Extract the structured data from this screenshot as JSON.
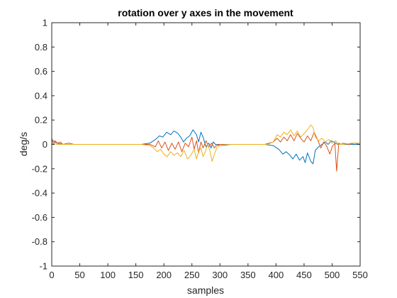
{
  "chart_data": {
    "type": "line",
    "title": "rotation over y axes in the movement",
    "xlabel": "samples",
    "ylabel": "deg/s",
    "xlim": [
      0,
      550
    ],
    "ylim": [
      -1,
      1
    ],
    "xticks": [
      "0",
      "50",
      "100",
      "150",
      "200",
      "250",
      "300",
      "350",
      "400",
      "450",
      "500",
      "550"
    ],
    "yticks": [
      "1",
      "0.8",
      "0.6",
      "0.4",
      "0.2",
      "0",
      "-0.2",
      "-0.4",
      "-0.6",
      "-0.8",
      "-1"
    ],
    "grid": false,
    "series": [
      {
        "color": "#0072BD",
        "points": [
          [
            0,
            0.04
          ],
          [
            5,
            0.02
          ],
          [
            10,
            0.01
          ],
          [
            20,
            0.0
          ],
          [
            40,
            0.0
          ],
          [
            60,
            0.0
          ],
          [
            80,
            0.0
          ],
          [
            100,
            0.0
          ],
          [
            120,
            0.0
          ],
          [
            140,
            0.0
          ],
          [
            160,
            0.0
          ],
          [
            175,
            0.01
          ],
          [
            185,
            0.04
          ],
          [
            192,
            0.07
          ],
          [
            198,
            0.06
          ],
          [
            205,
            0.1
          ],
          [
            212,
            0.08
          ],
          [
            218,
            0.11
          ],
          [
            225,
            0.09
          ],
          [
            230,
            0.06
          ],
          [
            235,
            0.02
          ],
          [
            240,
            0.05
          ],
          [
            246,
            0.07
          ],
          [
            252,
            0.12
          ],
          [
            258,
            0.08
          ],
          [
            262,
            0.02
          ],
          [
            266,
            0.1
          ],
          [
            270,
            0.06
          ],
          [
            275,
            -0.02
          ],
          [
            280,
            0.01
          ],
          [
            284,
            -0.03
          ],
          [
            288,
            0.02
          ],
          [
            292,
            0.0
          ],
          [
            300,
            -0.01
          ],
          [
            320,
            0.0
          ],
          [
            340,
            0.0
          ],
          [
            360,
            0.0
          ],
          [
            380,
            0.0
          ],
          [
            395,
            -0.01
          ],
          [
            405,
            -0.04
          ],
          [
            412,
            -0.08
          ],
          [
            418,
            -0.06
          ],
          [
            425,
            -0.09
          ],
          [
            430,
            -0.12
          ],
          [
            436,
            -0.08
          ],
          [
            442,
            -0.13
          ],
          [
            448,
            -0.1
          ],
          [
            452,
            -0.15
          ],
          [
            456,
            -0.07
          ],
          [
            462,
            -0.14
          ],
          [
            466,
            -0.16
          ],
          [
            470,
            -0.05
          ],
          [
            476,
            -0.02
          ],
          [
            482,
            0.0
          ],
          [
            488,
            0.02
          ],
          [
            493,
            0.0
          ],
          [
            498,
            0.03
          ],
          [
            503,
            0.02
          ],
          [
            510,
            0.0
          ],
          [
            520,
            0.0
          ],
          [
            535,
            0.0
          ],
          [
            550,
            0.0
          ]
        ]
      },
      {
        "color": "#D95319",
        "points": [
          [
            0,
            0.05
          ],
          [
            3,
            0.0
          ],
          [
            6,
            0.03
          ],
          [
            10,
            0.01
          ],
          [
            15,
            0.02
          ],
          [
            20,
            0.0
          ],
          [
            30,
            0.01
          ],
          [
            40,
            0.0
          ],
          [
            60,
            0.0
          ],
          [
            80,
            0.0
          ],
          [
            100,
            0.0
          ],
          [
            120,
            0.0
          ],
          [
            140,
            0.0
          ],
          [
            160,
            0.0
          ],
          [
            175,
            0.0
          ],
          [
            185,
            -0.02
          ],
          [
            190,
            0.03
          ],
          [
            196,
            -0.03
          ],
          [
            202,
            0.02
          ],
          [
            208,
            -0.05
          ],
          [
            214,
            0.01
          ],
          [
            220,
            -0.04
          ],
          [
            226,
            0.02
          ],
          [
            232,
            -0.06
          ],
          [
            238,
            0.01
          ],
          [
            244,
            -0.02
          ],
          [
            250,
            0.06
          ],
          [
            254,
            -0.04
          ],
          [
            258,
            0.03
          ],
          [
            262,
            -0.07
          ],
          [
            266,
            0.02
          ],
          [
            270,
            -0.03
          ],
          [
            275,
            0.03
          ],
          [
            280,
            -0.02
          ],
          [
            285,
            0.01
          ],
          [
            290,
            -0.03
          ],
          [
            295,
            0.0
          ],
          [
            305,
            0.0
          ],
          [
            320,
            0.0
          ],
          [
            340,
            0.0
          ],
          [
            360,
            0.0
          ],
          [
            380,
            0.0
          ],
          [
            395,
            0.02
          ],
          [
            402,
            0.05
          ],
          [
            408,
            0.02
          ],
          [
            414,
            0.06
          ],
          [
            420,
            0.03
          ],
          [
            426,
            0.08
          ],
          [
            432,
            0.03
          ],
          [
            438,
            0.09
          ],
          [
            444,
            0.05
          ],
          [
            450,
            0.02
          ],
          [
            456,
            0.07
          ],
          [
            462,
            0.03
          ],
          [
            468,
            0.1
          ],
          [
            474,
            0.04
          ],
          [
            480,
            -0.03
          ],
          [
            485,
            0.02
          ],
          [
            490,
            -0.01
          ],
          [
            496,
            -0.08
          ],
          [
            500,
            -0.02
          ],
          [
            505,
            0.01
          ],
          [
            508,
            -0.22
          ],
          [
            512,
            0.01
          ],
          [
            516,
            0.0
          ],
          [
            520,
            0.01
          ],
          [
            530,
            0.0
          ],
          [
            540,
            0.01
          ],
          [
            550,
            0.0
          ]
        ]
      },
      {
        "color": "#EDB120",
        "points": [
          [
            0,
            0.01
          ],
          [
            10,
            0.0
          ],
          [
            20,
            0.0
          ],
          [
            40,
            0.0
          ],
          [
            60,
            0.0
          ],
          [
            80,
            0.0
          ],
          [
            100,
            0.0
          ],
          [
            120,
            0.0
          ],
          [
            140,
            0.0
          ],
          [
            160,
            0.0
          ],
          [
            175,
            -0.01
          ],
          [
            182,
            -0.03
          ],
          [
            188,
            -0.06
          ],
          [
            194,
            -0.04
          ],
          [
            200,
            -0.08
          ],
          [
            206,
            -0.1
          ],
          [
            212,
            -0.06
          ],
          [
            218,
            -0.09
          ],
          [
            224,
            -0.07
          ],
          [
            230,
            -0.1
          ],
          [
            236,
            -0.05
          ],
          [
            242,
            -0.12
          ],
          [
            248,
            -0.09
          ],
          [
            254,
            -0.04
          ],
          [
            258,
            -0.12
          ],
          [
            262,
            -0.06
          ],
          [
            266,
            -0.03
          ],
          [
            270,
            -0.1
          ],
          [
            274,
            -0.06
          ],
          [
            278,
            0.0
          ],
          [
            282,
            -0.05
          ],
          [
            286,
            -0.14
          ],
          [
            290,
            -0.08
          ],
          [
            295,
            -0.02
          ],
          [
            300,
            -0.01
          ],
          [
            310,
            0.0
          ],
          [
            330,
            0.0
          ],
          [
            350,
            0.0
          ],
          [
            370,
            0.0
          ],
          [
            385,
            0.0
          ],
          [
            395,
            0.02
          ],
          [
            402,
            0.08
          ],
          [
            408,
            0.06
          ],
          [
            414,
            0.1
          ],
          [
            420,
            0.08
          ],
          [
            426,
            0.12
          ],
          [
            432,
            0.07
          ],
          [
            438,
            0.11
          ],
          [
            444,
            0.06
          ],
          [
            450,
            0.09
          ],
          [
            456,
            0.12
          ],
          [
            462,
            0.16
          ],
          [
            466,
            0.14
          ],
          [
            470,
            0.06
          ],
          [
            476,
            0.03
          ],
          [
            482,
            0.05
          ],
          [
            488,
            0.02
          ],
          [
            494,
            0.04
          ],
          [
            500,
            0.01
          ],
          [
            506,
            0.03
          ],
          [
            512,
            0.0
          ],
          [
            520,
            0.0
          ],
          [
            535,
            0.01
          ],
          [
            550,
            0.01
          ]
        ]
      }
    ]
  }
}
